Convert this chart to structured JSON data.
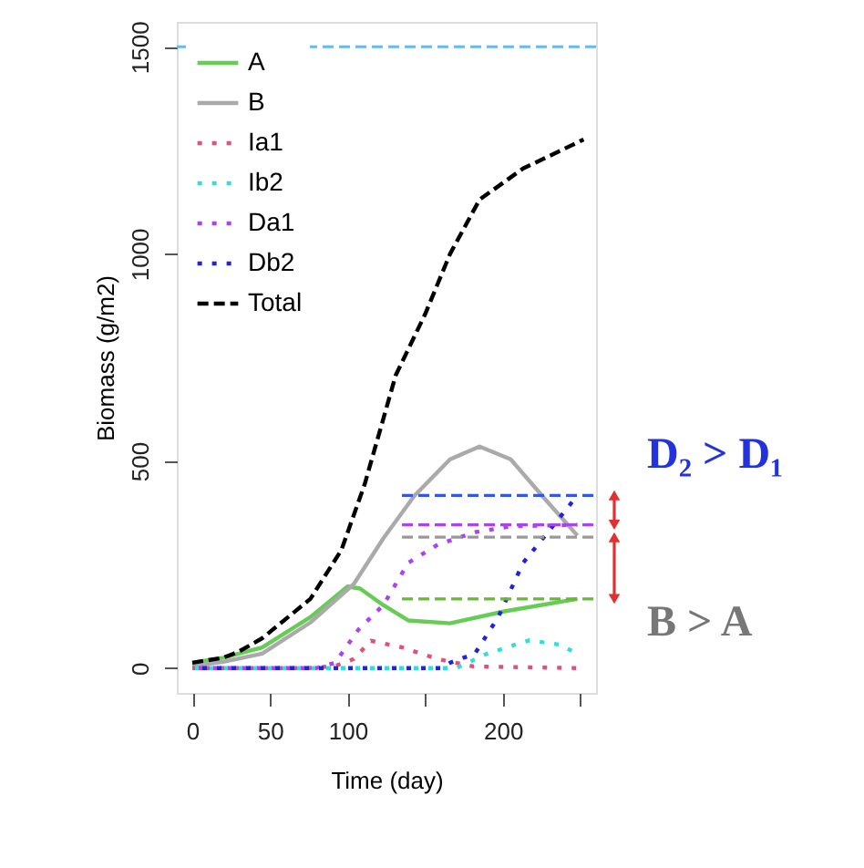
{
  "chart_data": {
    "type": "line",
    "xlabel": "Time (day)",
    "ylabel": "Biomass (g/m2)",
    "xlim": [
      -10,
      260
    ],
    "ylim": [
      -60,
      1560
    ],
    "xticks": [
      0,
      50,
      100,
      {
        "value": 150,
        "label": null
      },
      200,
      {
        "value": 250,
        "label": null
      }
    ],
    "yticks": [
      0,
      500,
      1000,
      1500
    ],
    "grid": false,
    "legend": "top left",
    "marker": "none",
    "series": [
      {
        "name": "A",
        "color": "#66cc55",
        "line_style": "solid",
        "x": [
          0,
          20,
          45,
          76,
          100,
          108,
          123,
          139,
          166,
          201,
          248
        ],
        "values": [
          13,
          25,
          50,
          123,
          197,
          192,
          152,
          115,
          108,
          137,
          167
        ]
      },
      {
        "name": "B",
        "color": "#aaaaaa",
        "line_style": "solid",
        "x": [
          0,
          20,
          45,
          76,
          104,
          123,
          143,
          166,
          185,
          205,
          229,
          248
        ],
        "values": [
          5,
          15,
          35,
          110,
          203,
          313,
          416,
          504,
          535,
          504,
          400,
          320
        ]
      },
      {
        "name": "Ia1",
        "color": "#e0507a",
        "line_style": "dotted",
        "x": [
          0,
          75,
          92,
          104,
          115,
          135,
          158,
          181,
          248
        ],
        "values": [
          0,
          0,
          5,
          22,
          66,
          50,
          22,
          4,
          0
        ]
      },
      {
        "name": "Ib2",
        "color": "#33dddd",
        "line_style": "dotted",
        "x": [
          0,
          170,
          190,
          217,
          236,
          248
        ],
        "values": [
          0,
          0,
          35,
          67,
          57,
          35
        ]
      },
      {
        "name": "Da1",
        "color": "#aa44ee",
        "line_style": "dotted",
        "x": [
          0,
          80,
          92,
          107,
          123,
          139,
          158,
          182,
          205,
          248
        ],
        "values": [
          0,
          0,
          13,
          93,
          152,
          254,
          298,
          328,
          342,
          346
        ]
      },
      {
        "name": "Db2",
        "color": "#2222dd",
        "line_style": "dotted",
        "x": [
          0,
          160,
          166,
          182,
          197,
          213,
          232,
          248
        ],
        "values": [
          0,
          0,
          13,
          35,
          123,
          254,
          342,
          417
        ]
      },
      {
        "name": "Total",
        "color": "#000000",
        "line_style": "dashed",
        "x": [
          0,
          20,
          30,
          45,
          76,
          96,
          111,
          131,
          150,
          166,
          185,
          213,
          252
        ],
        "values": [
          13,
          25,
          40,
          72,
          167,
          285,
          444,
          707,
          855,
          1000,
          1131,
          1206,
          1276
        ]
      },
      {
        "color": "#3355ee",
        "line_style": "dashed",
        "x": [
          135,
          260
        ],
        "values": [
          417,
          417
        ]
      },
      {
        "color": "#aa44ee",
        "line_style": "dashed",
        "x": [
          135,
          260
        ],
        "values": [
          346,
          346
        ]
      },
      {
        "color": "#999999",
        "line_style": "dashed",
        "x": [
          135,
          260
        ],
        "values": [
          316,
          316
        ]
      },
      {
        "color": "#66bb33",
        "line_style": "dashed",
        "x": [
          135,
          260
        ],
        "values": [
          167,
          167
        ]
      }
    ],
    "ref_lines": [
      {
        "axis": "y",
        "value": 1500,
        "color": "#66bbee",
        "line_style": "dashed"
      }
    ],
    "annotations": [
      "D₂ > D₁",
      "B > A"
    ]
  }
}
